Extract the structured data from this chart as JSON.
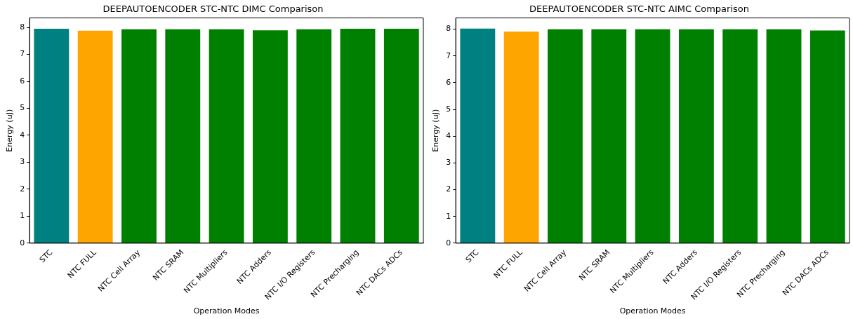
{
  "chart_data": [
    {
      "type": "bar",
      "title": "DEEPAUTOENCODER STC-NTC DIMC Comparison",
      "xlabel": "Operation Modes",
      "ylabel": "Energy (uJ)",
      "categories": [
        "STC",
        "NTC FULL",
        "NTC Cell Array",
        "NTC SRAM",
        "NTC Multipliers",
        "NTC Adders",
        "NTC I/O Registers",
        "NTC Precharging",
        "NTC DACs ADCs"
      ],
      "values": [
        7.95,
        7.88,
        7.93,
        7.93,
        7.93,
        7.89,
        7.93,
        7.95,
        7.95
      ],
      "colors": [
        "#008080",
        "#ffa500",
        "#008000",
        "#008000",
        "#008000",
        "#008000",
        "#008000",
        "#008000",
        "#008000"
      ],
      "ylim": [
        0,
        8.35
      ],
      "yticks": [
        0,
        1,
        2,
        3,
        4,
        5,
        6,
        7,
        8
      ],
      "grid": false,
      "legend": false
    },
    {
      "type": "bar",
      "title": "DEEPAUTOENCODER STC-NTC AIMC Comparison",
      "xlabel": "Operation Modes",
      "ylabel": "Energy (uJ)",
      "categories": [
        "STC",
        "NTC FULL",
        "NTC Cell Array",
        "NTC SRAM",
        "NTC Multipliers",
        "NTC Adders",
        "NTC I/O Registers",
        "NTC Precharging",
        "NTC DACs ADCs"
      ],
      "values": [
        8.02,
        7.91,
        8.0,
        8.0,
        8.0,
        8.0,
        8.0,
        8.0,
        7.95
      ],
      "colors": [
        "#008080",
        "#ffa500",
        "#008000",
        "#008000",
        "#008000",
        "#008000",
        "#008000",
        "#008000",
        "#008000"
      ],
      "ylim": [
        0,
        8.42
      ],
      "yticks": [
        0,
        1,
        2,
        3,
        4,
        5,
        6,
        7,
        8
      ],
      "grid": false,
      "legend": false
    }
  ]
}
